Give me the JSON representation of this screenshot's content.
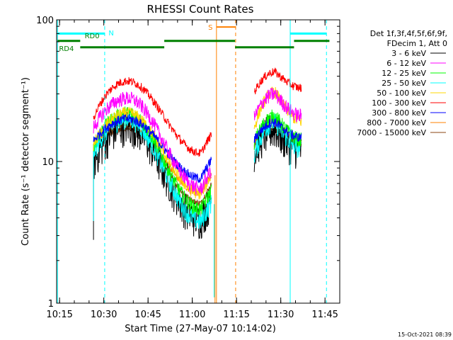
{
  "chart_data": {
    "type": "line",
    "title": "RHESSI Count Rates",
    "xlabel": "Start Time (27-May-07 10:14:02)",
    "ylabel": "Count Rate (s⁻¹ detector segment⁻¹)",
    "y_scale": "log",
    "ylim": [
      1,
      100
    ],
    "xlim_minutes_since_10_14_02": [
      0,
      96
    ],
    "x_ticks": [
      "10:15",
      "10:30",
      "10:45",
      "11:00",
      "11:15",
      "11:30",
      "11:45"
    ],
    "x_tick_minutes": [
      1,
      16,
      31,
      46,
      61,
      76,
      91
    ],
    "y_ticks": [
      "1",
      "10",
      "100"
    ],
    "y_tick_values": [
      1,
      10,
      100
    ],
    "timestamp": "15-Oct-2021 08:39",
    "legend_header": [
      "Det 1f,3f,4f,5f,6f,9f,",
      "FDecim 1, Att 0"
    ],
    "series": [
      {
        "name": "3 - 6 keV",
        "color": "#000000",
        "peak_values": [
          18,
          17
        ]
      },
      {
        "name": "6 - 12 keV",
        "color": "#ff00ff",
        "peak_values": [
          28,
          30
        ]
      },
      {
        "name": "12 - 25 keV",
        "color": "#00ff00",
        "peak_values": [
          22,
          21
        ]
      },
      {
        "name": "25 - 50 keV",
        "color": "#00ffff",
        "peak_values": [
          20,
          19
        ]
      },
      {
        "name": "50 - 100 keV",
        "color": "#ffd700",
        "peak_values": [
          22,
          31
        ]
      },
      {
        "name": "100 - 300 keV",
        "color": "#ff0000",
        "peak_values": [
          37,
          43
        ]
      },
      {
        "name": "300 - 800 keV",
        "color": "#0000ff",
        "peak_values": [
          20,
          19
        ]
      },
      {
        "name": "800 - 7000 keV",
        "color": "#ff8000",
        "peak_values": [
          18,
          18
        ]
      },
      {
        "name": "7000 - 15000 keV",
        "color": "#8b4513",
        "peak_values": [
          17,
          17
        ]
      }
    ],
    "annotations": [
      "N",
      "S",
      "RD0",
      "RD4"
    ],
    "colors": {
      "night": "#00ffff",
      "saa": "#ff8000",
      "decim": "#008000"
    }
  }
}
